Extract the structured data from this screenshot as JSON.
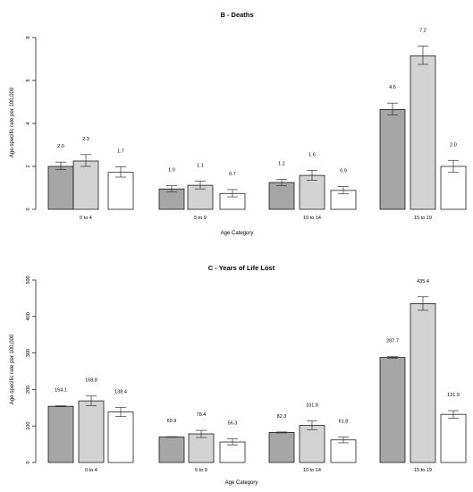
{
  "chart_data": [
    {
      "type": "bar",
      "title": "B - Deaths",
      "xlabel": "Age Category",
      "ylabel": "Age-specific rate per 100,000",
      "categories": [
        "0 to 4",
        "5 to 9",
        "10 to 14",
        "15 to 19"
      ],
      "ylim": [
        0,
        8
      ],
      "yticks": [
        "0",
        "2",
        "4",
        "6",
        "8"
      ],
      "colors": [
        "#a6a6a6",
        "#d3d3d3",
        "#ffffff"
      ],
      "series": [
        {
          "values": [
            2.0,
            0.95,
            1.25,
            4.65
          ],
          "err_low": [
            1.85,
            0.82,
            1.1,
            4.4
          ],
          "err_high": [
            2.2,
            1.1,
            1.4,
            4.95
          ],
          "labels": [
            "2.0",
            "1.0",
            "1.2",
            "4.6"
          ]
        },
        {
          "values": [
            2.25,
            1.12,
            1.58,
            7.15
          ],
          "err_low": [
            2.0,
            0.95,
            1.35,
            6.75
          ],
          "err_high": [
            2.55,
            1.32,
            1.82,
            7.6
          ],
          "labels": [
            "2.3",
            "1.1",
            "1.6",
            "7.2"
          ]
        },
        {
          "values": [
            1.72,
            0.74,
            0.88,
            2.0
          ],
          "err_low": [
            1.5,
            0.58,
            0.72,
            1.72
          ],
          "err_high": [
            1.98,
            0.92,
            1.06,
            2.28
          ],
          "labels": [
            "1.7",
            "0.7",
            "0.9",
            "2.0"
          ]
        }
      ]
    },
    {
      "type": "bar",
      "title": "C - Years of Life Lost",
      "xlabel": "Age Category",
      "ylabel": "Age-specific rate per 100,000",
      "categories": [
        "0 to 4",
        "5 to 9",
        "10 to 14",
        "15 to 19"
      ],
      "ylim": [
        0,
        500
      ],
      "yticks": [
        "0",
        "100",
        "200",
        "300",
        "400",
        "500"
      ],
      "colors": [
        "#a6a6a6",
        "#d3d3d3",
        "#ffffff"
      ],
      "series": [
        {
          "values": [
            154.1,
            69.9,
            82.3,
            287.7
          ],
          "err_low": [
            153.0,
            69.0,
            81.0,
            285.5
          ],
          "err_high": [
            155.2,
            70.8,
            83.6,
            289.9
          ],
          "labels": [
            "154.1",
            "69.9",
            "82.3",
            "287.7"
          ]
        },
        {
          "values": [
            168.8,
            78.4,
            101.8,
            435.4
          ],
          "err_low": [
            156.0,
            68.5,
            90.0,
            417.0
          ],
          "err_high": [
            182.0,
            88.0,
            113.5,
            454.0
          ],
          "labels": [
            "168.8",
            "78.4",
            "101.8",
            "435.4"
          ]
        },
        {
          "values": [
            138.4,
            56.3,
            61.8,
            131.9
          ],
          "err_low": [
            126.0,
            48.0,
            54.0,
            121.0
          ],
          "err_high": [
            150.5,
            64.5,
            69.5,
            142.0
          ],
          "labels": [
            "138.4",
            "56.3",
            "61.8",
            "131.9"
          ]
        }
      ]
    }
  ]
}
